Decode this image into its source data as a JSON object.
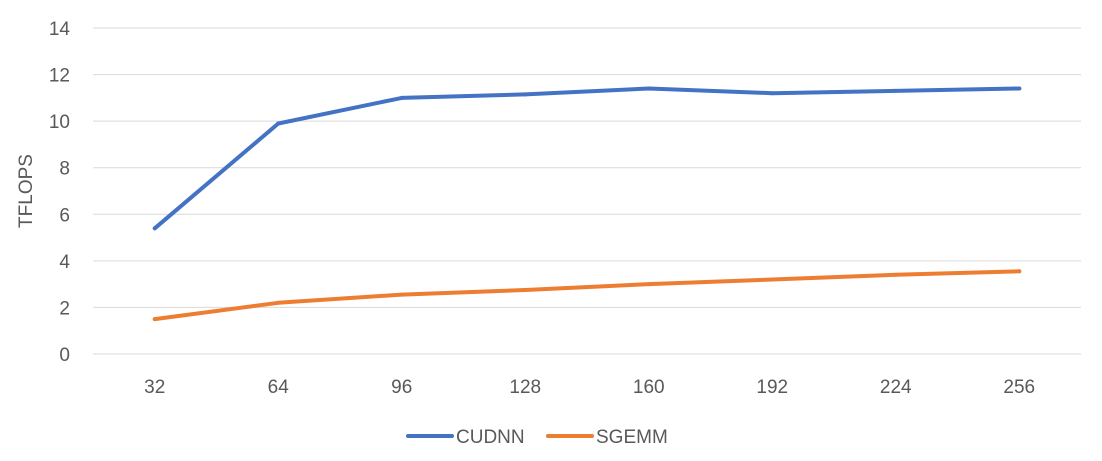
{
  "chart_data": {
    "type": "line",
    "title": "",
    "xlabel": "",
    "ylabel": "TFLOPS",
    "categories": [
      "32",
      "64",
      "96",
      "128",
      "160",
      "192",
      "224",
      "256"
    ],
    "ylim": [
      0,
      14
    ],
    "yticks": [
      "0",
      "2",
      "4",
      "6",
      "8",
      "10",
      "12",
      "14"
    ],
    "grid": true,
    "legend_position": "bottom",
    "series": [
      {
        "name": "CUDNN",
        "color": "#4472C4",
        "values": [
          5.4,
          9.9,
          11.0,
          11.15,
          11.4,
          11.2,
          11.3,
          11.4
        ]
      },
      {
        "name": "SGEMM",
        "color": "#ED7D31",
        "values": [
          1.5,
          2.2,
          2.55,
          2.75,
          3.0,
          3.2,
          3.4,
          3.55
        ]
      }
    ]
  }
}
